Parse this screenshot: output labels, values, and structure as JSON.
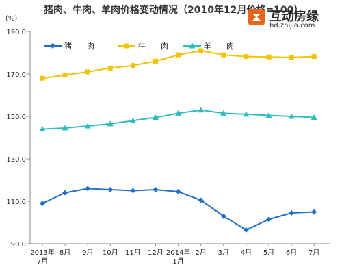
{
  "header": {
    "title": "猪肉、牛肉、羊肉价格变动情况（2010年12月价格=100）",
    "unit": "(%)"
  },
  "watermark": {
    "brand": "互动房缘",
    "url": "bd.zhijia.com"
  },
  "colors": {
    "pork": "#1f6fc5",
    "beef": "#f2c300",
    "mutton": "#2fbcc0",
    "axis": "#888888"
  },
  "chart_data": {
    "type": "line",
    "title": "猪肉、牛肉、羊肉价格变动情况（2010年12月价格=100）",
    "ylabel": "(%)",
    "xlabel": "",
    "ylim": [
      90,
      190
    ],
    "yticks": [
      "90.0",
      "110.0",
      "130.0",
      "150.0",
      "170.0",
      "190.0"
    ],
    "categories": [
      [
        "2013年",
        "7月"
      ],
      [
        "8月"
      ],
      [
        "9月"
      ],
      [
        "10月"
      ],
      [
        "11月"
      ],
      [
        "12月"
      ],
      [
        "2014年",
        "1月"
      ],
      [
        "2月"
      ],
      [
        "3月"
      ],
      [
        "4月"
      ],
      [
        "5月"
      ],
      [
        "6月"
      ],
      [
        "7月"
      ]
    ],
    "legend_position": "top-left",
    "grid": false,
    "series": [
      {
        "name": "猪　　肉",
        "color": "#1f6fc5",
        "marker": "diamond",
        "values": [
          109,
          114,
          116,
          115.5,
          115,
          115.5,
          114.5,
          110.5,
          103,
          96.5,
          101.5,
          104.5,
          105
        ]
      },
      {
        "name": "牛　　肉",
        "color": "#f2c300",
        "marker": "square",
        "values": [
          168,
          169.5,
          171,
          172.8,
          174,
          176,
          179,
          181,
          179,
          178.2,
          178,
          177.8,
          178.2
        ]
      },
      {
        "name": "羊　　肉",
        "color": "#2fbcc0",
        "marker": "triangle",
        "values": [
          144,
          144.5,
          145.5,
          146.5,
          148,
          149.5,
          151.5,
          153,
          151.5,
          151,
          150.5,
          150,
          149.5
        ]
      }
    ]
  }
}
